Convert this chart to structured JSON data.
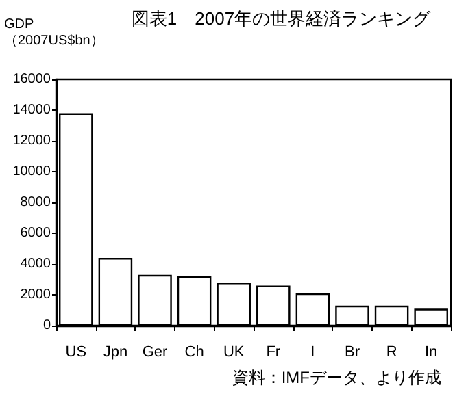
{
  "chart_data": {
    "type": "bar",
    "title": "図表1　2007年の世界経済ランキング",
    "ylabel": "GDP\n（2007US$bn）",
    "categories": [
      "US",
      "Jpn",
      "Ger",
      "Ch",
      "UK",
      "Fr",
      "I",
      "Br",
      "R",
      "In"
    ],
    "values": [
      13800,
      4400,
      3300,
      3200,
      2800,
      2600,
      2100,
      1300,
      1300,
      1100
    ],
    "color": "#ffffff",
    "ylim": [
      0,
      16000
    ],
    "yticks": [
      0,
      2000,
      4000,
      6000,
      8000,
      10000,
      12000,
      14000,
      16000
    ],
    "grid": false,
    "annotations": [
      "資料：IMFデータ、より作成"
    ]
  }
}
